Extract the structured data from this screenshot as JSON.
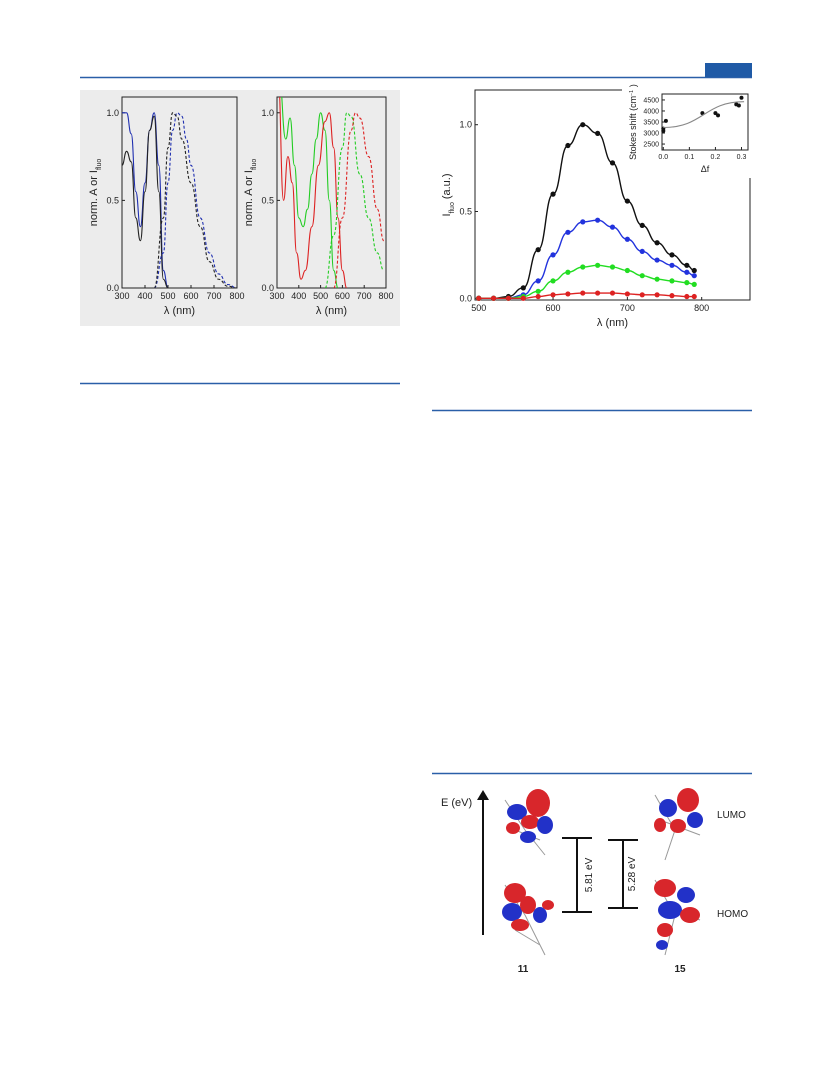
{
  "chart_data": [
    {
      "type": "line",
      "x_label": "λ (nm)",
      "y_label": "norm. A or I",
      "y_label_sub": "fluo",
      "xlim": [
        300,
        800
      ],
      "ylim": [
        0,
        1.09
      ],
      "xticks": [
        300,
        400,
        500,
        600,
        700,
        800
      ],
      "yticks": [
        {
          "value": 0,
          "label": "0.0"
        },
        {
          "value": 0.5,
          "label": "0.5"
        },
        {
          "value": 1,
          "label": "1.0"
        }
      ],
      "series": [
        {
          "color": "#1f2fb0",
          "style": "solid",
          "x": [
            300,
            320,
            340,
            360,
            380,
            400,
            420,
            440,
            460,
            480,
            500
          ],
          "values": [
            1.0,
            1.0,
            0.88,
            0.55,
            0.35,
            0.6,
            0.9,
            1.0,
            0.7,
            0.1,
            0.0
          ]
        },
        {
          "color": "#222222",
          "style": "solid",
          "x": [
            300,
            320,
            340,
            360,
            380,
            400,
            420,
            440,
            460,
            480,
            500
          ],
          "values": [
            0.7,
            0.78,
            0.72,
            0.4,
            0.27,
            0.55,
            0.9,
            0.98,
            0.55,
            0.05,
            0.0
          ]
        },
        {
          "color": "#1f2fb0",
          "style": "dashed",
          "x": [
            440,
            480,
            500,
            520,
            540,
            560,
            580,
            600,
            640,
            680,
            720,
            760,
            800
          ],
          "values": [
            0,
            0.2,
            0.6,
            0.9,
            1.0,
            0.98,
            0.85,
            0.7,
            0.4,
            0.2,
            0.08,
            0.02,
            0
          ]
        },
        {
          "color": "#222222",
          "style": "dashed",
          "x": [
            440,
            480,
            500,
            520,
            540,
            560,
            600,
            640,
            680,
            720,
            760,
            800
          ],
          "values": [
            0,
            0.4,
            0.8,
            1.0,
            0.98,
            0.85,
            0.6,
            0.35,
            0.15,
            0.05,
            0.01,
            0
          ]
        }
      ]
    },
    {
      "type": "line",
      "x_label": "λ (nm)",
      "y_label": "norm. A or I",
      "y_label_sub": "fluo",
      "xlim": [
        300,
        800
      ],
      "ylim": [
        0,
        1.09
      ],
      "xticks": [
        300,
        400,
        500,
        600,
        700,
        800
      ],
      "yticks": [
        {
          "value": 0,
          "label": "0.0"
        },
        {
          "value": 0.5,
          "label": "0.5"
        },
        {
          "value": 1,
          "label": "1.0"
        }
      ],
      "series": [
        {
          "color": "#22cc22",
          "style": "solid",
          "x": [
            310,
            340,
            360,
            380,
            400,
            420,
            440,
            460,
            480,
            500,
            520,
            540,
            560,
            580
          ],
          "values": [
            1.2,
            0.85,
            0.97,
            0.7,
            0.4,
            0.35,
            0.45,
            0.65,
            0.85,
            1.0,
            0.9,
            0.5,
            0.1,
            0
          ]
        },
        {
          "color": "#dd2222",
          "style": "solid",
          "x": [
            305,
            330,
            350,
            370,
            390,
            410,
            430,
            460,
            490,
            520,
            540,
            560,
            580,
            600,
            620
          ],
          "values": [
            1.2,
            0.5,
            0.75,
            0.6,
            0.2,
            0.05,
            0.1,
            0.35,
            0.7,
            0.95,
            1.0,
            0.8,
            0.4,
            0.1,
            0
          ]
        },
        {
          "color": "#22cc22",
          "style": "dashed",
          "x": [
            520,
            560,
            600,
            620,
            640,
            680,
            720,
            760,
            790
          ],
          "values": [
            0,
            0.3,
            0.8,
            1.0,
            0.98,
            0.65,
            0.4,
            0.2,
            0.1
          ]
        },
        {
          "color": "#dd2222",
          "style": "dashed",
          "x": [
            560,
            600,
            640,
            660,
            680,
            720,
            760,
            790
          ],
          "values": [
            0,
            0.4,
            0.9,
            1.0,
            0.97,
            0.75,
            0.45,
            0.27
          ]
        }
      ]
    },
    {
      "type": "line",
      "x_label": "λ (nm)",
      "y_label": "I",
      "y_label_sub": "fluo",
      "y_label_end": "(a.u.)",
      "xlim": [
        495,
        865
      ],
      "ylim": [
        -0.01,
        1.2
      ],
      "xticks": [
        500,
        600,
        700,
        800
      ],
      "yticks": [
        {
          "value": 0,
          "label": "0.0"
        },
        {
          "value": 0.5,
          "label": "0.5"
        },
        {
          "value": 1,
          "label": "1.0"
        }
      ],
      "series": [
        {
          "color": "#111111",
          "style": "markers",
          "x": [
            500,
            520,
            540,
            560,
            580,
            600,
            620,
            640,
            660,
            680,
            700,
            720,
            740,
            760,
            780,
            790
          ],
          "values": [
            0,
            0,
            0.01,
            0.06,
            0.28,
            0.6,
            0.88,
            1.0,
            0.95,
            0.78,
            0.56,
            0.42,
            0.32,
            0.25,
            0.19,
            0.16
          ]
        },
        {
          "color": "#2233dd",
          "style": "markers",
          "x": [
            500,
            520,
            540,
            560,
            580,
            600,
            620,
            640,
            660,
            680,
            700,
            720,
            740,
            760,
            780,
            790
          ],
          "values": [
            0,
            0,
            0,
            0.02,
            0.1,
            0.25,
            0.38,
            0.44,
            0.45,
            0.41,
            0.34,
            0.27,
            0.22,
            0.19,
            0.15,
            0.13
          ]
        },
        {
          "color": "#22dd22",
          "style": "markers",
          "x": [
            500,
            520,
            540,
            560,
            580,
            600,
            620,
            640,
            660,
            680,
            700,
            720,
            740,
            760,
            780,
            790
          ],
          "values": [
            0,
            0,
            0,
            0.01,
            0.04,
            0.1,
            0.15,
            0.18,
            0.19,
            0.18,
            0.16,
            0.13,
            0.11,
            0.1,
            0.09,
            0.08
          ]
        },
        {
          "color": "#dd2222",
          "style": "markers",
          "x": [
            500,
            520,
            540,
            560,
            580,
            600,
            620,
            640,
            660,
            680,
            700,
            720,
            740,
            760,
            780,
            790
          ],
          "values": [
            0,
            0,
            0,
            0,
            0.01,
            0.02,
            0.025,
            0.03,
            0.03,
            0.03,
            0.025,
            0.02,
            0.02,
            0.015,
            0.01,
            0.01
          ]
        }
      ]
    },
    {
      "type": "scatter",
      "x_label": "Δf",
      "y_label": "Stokes shift (cm",
      "y_label_sup": "−1",
      "y_label_end": ")",
      "xlim": [
        -0.005,
        0.325
      ],
      "ylim": [
        2230,
        4770
      ],
      "xticks": [
        {
          "value": 0,
          "label": "0.0"
        },
        0.1,
        0.2,
        0.3
      ],
      "yticks": [
        2500,
        3000,
        3500,
        4000,
        4500
      ],
      "series": [
        {
          "color": "#111111",
          "style": "points",
          "x": [
            0,
            0,
            0.01,
            0.15,
            0.2,
            0.21,
            0.28,
            0.29,
            0.3
          ],
          "values": [
            3100,
            3200,
            3550,
            3900,
            3900,
            3800,
            4300,
            4250,
            4600
          ]
        },
        {
          "color": "#888888",
          "style": "solid",
          "x": [
            0,
            0.31
          ],
          "values": [
            3250,
            4420
          ]
        }
      ]
    }
  ],
  "mo_diagram": {
    "axis_label": "E (eV)",
    "levels": [
      "LUMO",
      "HOMO"
    ],
    "gaps": [
      "5.81 eV",
      "5.28 eV"
    ],
    "compounds": [
      "11",
      "15"
    ]
  }
}
